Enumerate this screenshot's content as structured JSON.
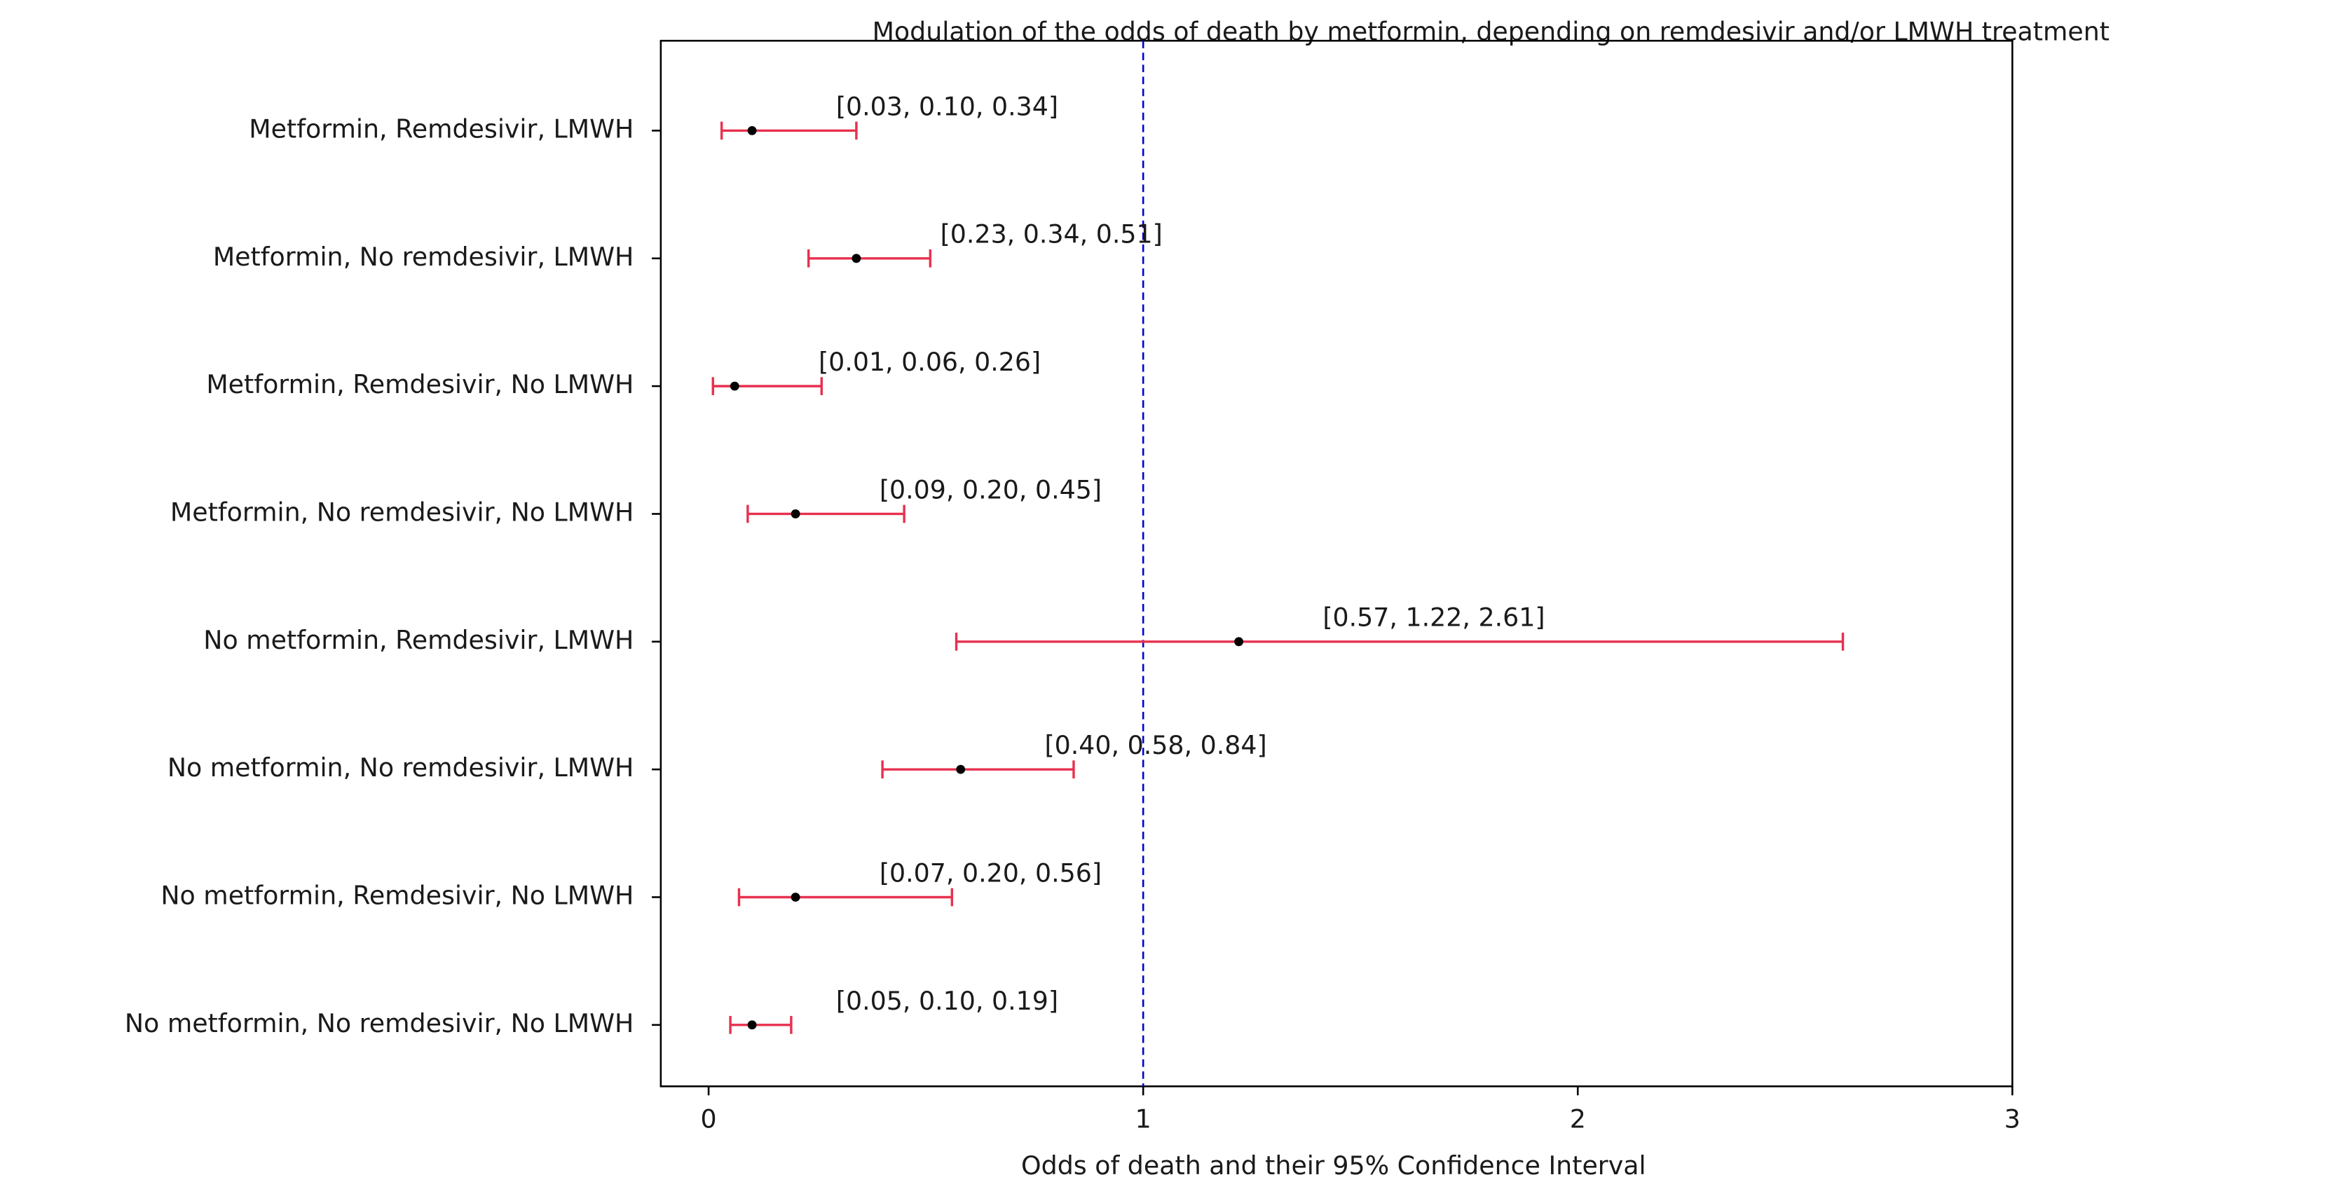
{
  "chart_data": {
    "type": "forest",
    "title": "Modulation of the odds of death by metformin, depending on remdesivir and/or LMWH treatment",
    "x_label": "Odds of death and their 95% Confidence Interval",
    "categories": [
      "Metformin, Remdesivir, LMWH",
      "Metformin, No remdesivir, LMWH",
      "Metformin, Remdesivir, No LMWH",
      "Metformin, No remdesivir, No LMWH",
      "No metformin, Remdesivir, LMWH",
      "No metformin, No remdesivir, LMWH",
      "No metformin, Remdesivir, No LMWH",
      "No metformin, No remdesivir, No LMWH"
    ],
    "values": [
      0.1,
      0.34,
      0.06,
      0.2,
      1.22,
      0.58,
      0.2,
      0.1
    ],
    "lower": [
      0.03,
      0.23,
      0.01,
      0.09,
      0.57,
      0.4,
      0.07,
      0.05
    ],
    "upper": [
      0.34,
      0.51,
      0.26,
      0.45,
      2.61,
      0.84,
      0.56,
      0.19
    ],
    "value_labels": [
      "[0.03, 0.10, 0.34]",
      "[0.23, 0.34, 0.51]",
      "[0.01, 0.06, 0.26]",
      "[0.09, 0.20, 0.45]",
      "[0.57, 1.22, 2.61]",
      "[0.40, 0.58, 0.84]",
      "[0.07, 0.20, 0.56]",
      "[0.05, 0.10, 0.19]"
    ],
    "color": "#e8304f",
    "point_color": "#000000",
    "reference_line": 1,
    "reference_color": "#0000cc",
    "xlim": [
      -0.11,
      3
    ],
    "xticks": [
      0,
      1,
      2,
      3
    ]
  }
}
